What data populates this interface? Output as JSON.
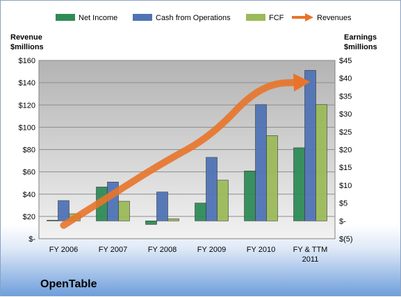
{
  "colors": {
    "net_income": "#2e8b57",
    "cash_from_operations": "#4f73b5",
    "fcf": "#9bbb59",
    "revenues": "#e8742a"
  },
  "company": "OpenTable",
  "chart_data": {
    "type": "bar",
    "categories": [
      "FY 2006",
      "FY 2007",
      "FY 2008",
      "FY 2009",
      "FY 2010",
      "FY & TTM|2011"
    ],
    "left_axis": {
      "title_line1": "Revenue",
      "title_line2": "$millions",
      "ylim": [
        0,
        160
      ],
      "ticks": [
        0,
        20,
        40,
        60,
        80,
        100,
        120,
        140,
        160
      ],
      "tick_labels": [
        "$-",
        "$20",
        "$40",
        "$60",
        "$80",
        "$100",
        "$120",
        "$140",
        "$160"
      ]
    },
    "right_axis": {
      "title_line1": "Earnings",
      "title_line2": "$millions",
      "ylim": [
        -5,
        45
      ],
      "ticks": [
        -5,
        0,
        5,
        10,
        15,
        20,
        25,
        30,
        35,
        40,
        45
      ],
      "tick_labels": [
        "$(5)",
        "$-",
        "$5",
        "$10",
        "$15",
        "$20",
        "$25",
        "$30",
        "$35",
        "$40",
        "$45"
      ]
    },
    "series": [
      {
        "name": "Net Income",
        "axis": "right",
        "kind": "bar",
        "values": [
          0.2,
          9.5,
          -1.0,
          5.0,
          14.0,
          20.5
        ]
      },
      {
        "name": "Cash from Operations",
        "axis": "right",
        "kind": "bar",
        "values": [
          5.7,
          10.9,
          8.1,
          17.8,
          32.6,
          42.2
        ]
      },
      {
        "name": "FCF",
        "axis": "right",
        "kind": "bar",
        "values": [
          2.0,
          5.5,
          0.6,
          11.4,
          23.9,
          32.6
        ]
      },
      {
        "name": "Revenues",
        "axis": "left",
        "kind": "arrow",
        "values": [
          12,
          40,
          68,
          92,
          139,
          166
        ]
      }
    ],
    "legend_position": "top",
    "grid": true
  }
}
